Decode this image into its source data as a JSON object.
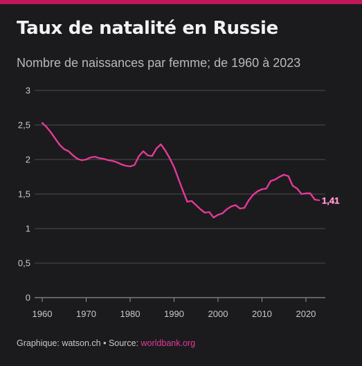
{
  "header": {
    "title": "Taux de natalité en Russie",
    "subtitle": "Nombre de naissances par femme; de 1960 à 2023"
  },
  "footer": {
    "credit": "Graphique: watson.ch",
    "separator": " • ",
    "source_label": "Source: ",
    "source_link": "worldbank.org"
  },
  "colors": {
    "background": "#1b1b1d",
    "line": "#e5399a",
    "accent_bar": "#c2185b",
    "grid": "#9a9a9a",
    "tick_text": "#c9c9c9",
    "end_label": "#f4a6cf"
  },
  "chart_data": {
    "type": "line",
    "title": "Taux de natalité en Russie",
    "subtitle": "Nombre de naissances par femme; de 1960 à 2023",
    "xlabel": "",
    "ylabel": "",
    "xlim": [
      1960,
      2023
    ],
    "ylim": [
      0,
      3
    ],
    "x_ticks": [
      1960,
      1970,
      1980,
      1990,
      2000,
      2010,
      2020
    ],
    "x_tick_labels": [
      "1960",
      "1970",
      "1980",
      "1990",
      "2000",
      "2010",
      "2020"
    ],
    "y_ticks": [
      0,
      0.5,
      1,
      1.5,
      2,
      2.5,
      3
    ],
    "y_tick_labels": [
      "0",
      "0,5",
      "1",
      "1,5",
      "2",
      "2,5",
      "3"
    ],
    "grid": "horizontal",
    "legend": "none",
    "end_label": "1,41",
    "series": [
      {
        "x": [
          1960,
          1961,
          1962,
          1963,
          1964,
          1965,
          1966,
          1967,
          1968,
          1969,
          1970,
          1971,
          1972,
          1973,
          1974,
          1975,
          1976,
          1977,
          1978,
          1979,
          1980,
          1981,
          1982,
          1983,
          1984,
          1985,
          1986,
          1987,
          1988,
          1989,
          1990,
          1991,
          1992,
          1993,
          1994,
          1995,
          1996,
          1997,
          1998,
          1999,
          2000,
          2001,
          2002,
          2003,
          2004,
          2005,
          2006,
          2007,
          2008,
          2009,
          2010,
          2011,
          2012,
          2013,
          2014,
          2015,
          2016,
          2017,
          2018,
          2019,
          2020,
          2021,
          2022,
          2023
        ],
        "values": [
          2.53,
          2.47,
          2.39,
          2.3,
          2.21,
          2.15,
          2.12,
          2.06,
          2.01,
          1.99,
          2.0,
          2.03,
          2.04,
          2.02,
          2.01,
          1.99,
          1.98,
          1.96,
          1.93,
          1.91,
          1.9,
          1.92,
          2.05,
          2.12,
          2.06,
          2.05,
          2.16,
          2.22,
          2.13,
          2.02,
          1.89,
          1.72,
          1.55,
          1.39,
          1.4,
          1.34,
          1.28,
          1.23,
          1.24,
          1.16,
          1.2,
          1.22,
          1.28,
          1.32,
          1.34,
          1.29,
          1.3,
          1.41,
          1.49,
          1.54,
          1.57,
          1.58,
          1.69,
          1.71,
          1.75,
          1.78,
          1.76,
          1.62,
          1.58,
          1.5,
          1.51,
          1.51,
          1.42,
          1.41
        ]
      }
    ]
  }
}
